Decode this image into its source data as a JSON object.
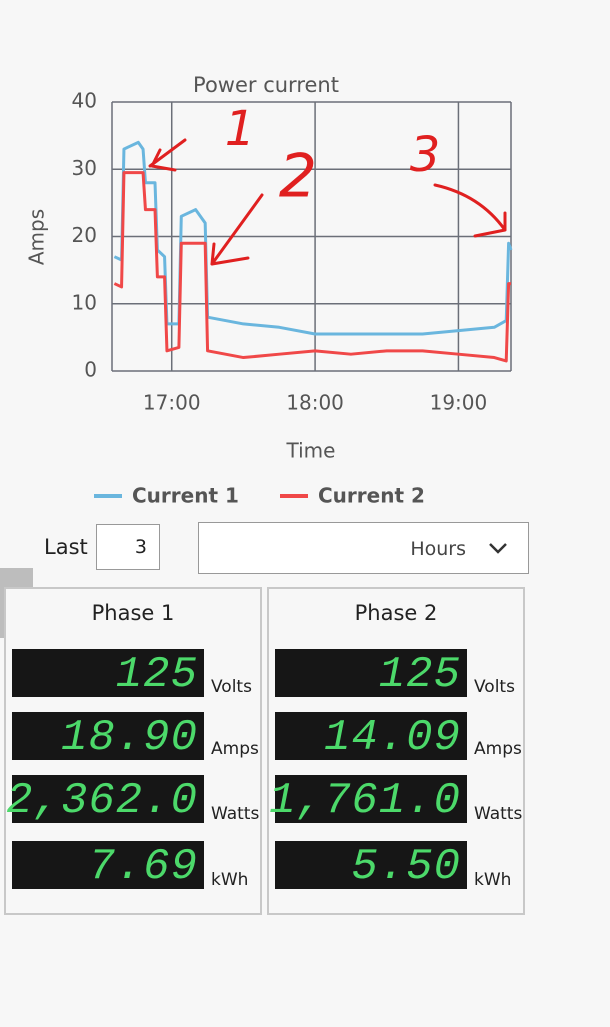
{
  "chart_data": {
    "type": "line",
    "title": "Power current",
    "xlabel": "Time",
    "ylabel": "Amps",
    "x": [
      "16:36",
      "16:39",
      "16:40",
      "16:46",
      "16:48",
      "16:49",
      "16:53",
      "16:54",
      "16:57",
      "16:58",
      "17:03",
      "17:04",
      "17:10",
      "17:14",
      "17:15",
      "17:30",
      "17:45",
      "18:00",
      "18:15",
      "18:30",
      "18:45",
      "19:00",
      "19:15",
      "19:20",
      "19:21",
      "19:22"
    ],
    "series": [
      {
        "name": "Current 1",
        "color": "#6ab6de",
        "values": [
          17,
          16.5,
          33,
          34,
          33,
          28,
          28,
          18,
          17,
          7,
          7,
          23,
          24,
          22,
          8,
          7,
          6.5,
          5.5,
          5.5,
          5.5,
          5.5,
          6,
          6.5,
          7.5,
          19,
          18
        ]
      },
      {
        "name": "Current 2",
        "color": "#f04848",
        "values": [
          13,
          12.5,
          29.5,
          29.5,
          29.5,
          24,
          24,
          14,
          14,
          3,
          3.5,
          19,
          19,
          19,
          3,
          2,
          2.5,
          3,
          2.5,
          3,
          3,
          2.5,
          2,
          1.5,
          13,
          13
        ]
      }
    ],
    "xlim": [
      "16:35",
      "19:22"
    ],
    "xticks": [
      "17:00",
      "18:00",
      "19:00"
    ],
    "ylim": [
      0,
      40
    ],
    "yticks": [
      0,
      10,
      20,
      30,
      40
    ],
    "grid": true,
    "legend": "bottom",
    "annotations": [
      "1",
      "2",
      "3"
    ]
  },
  "controls": {
    "label": "Last",
    "count": 3,
    "unit": "Hours"
  },
  "phases": [
    {
      "title": "Phase 1",
      "readings": [
        {
          "value": "125",
          "unit": "Volts"
        },
        {
          "value": "18.90",
          "unit": "Amps"
        },
        {
          "value": "2,362.0",
          "unit": "Watts"
        },
        {
          "value": "7.69",
          "unit": "kWh"
        }
      ]
    },
    {
      "title": "Phase 2",
      "readings": [
        {
          "value": "125",
          "unit": "Volts"
        },
        {
          "value": "14.09",
          "unit": "Amps"
        },
        {
          "value": "1,761.0",
          "unit": "Watts"
        },
        {
          "value": "5.50",
          "unit": "kWh"
        }
      ]
    }
  ]
}
